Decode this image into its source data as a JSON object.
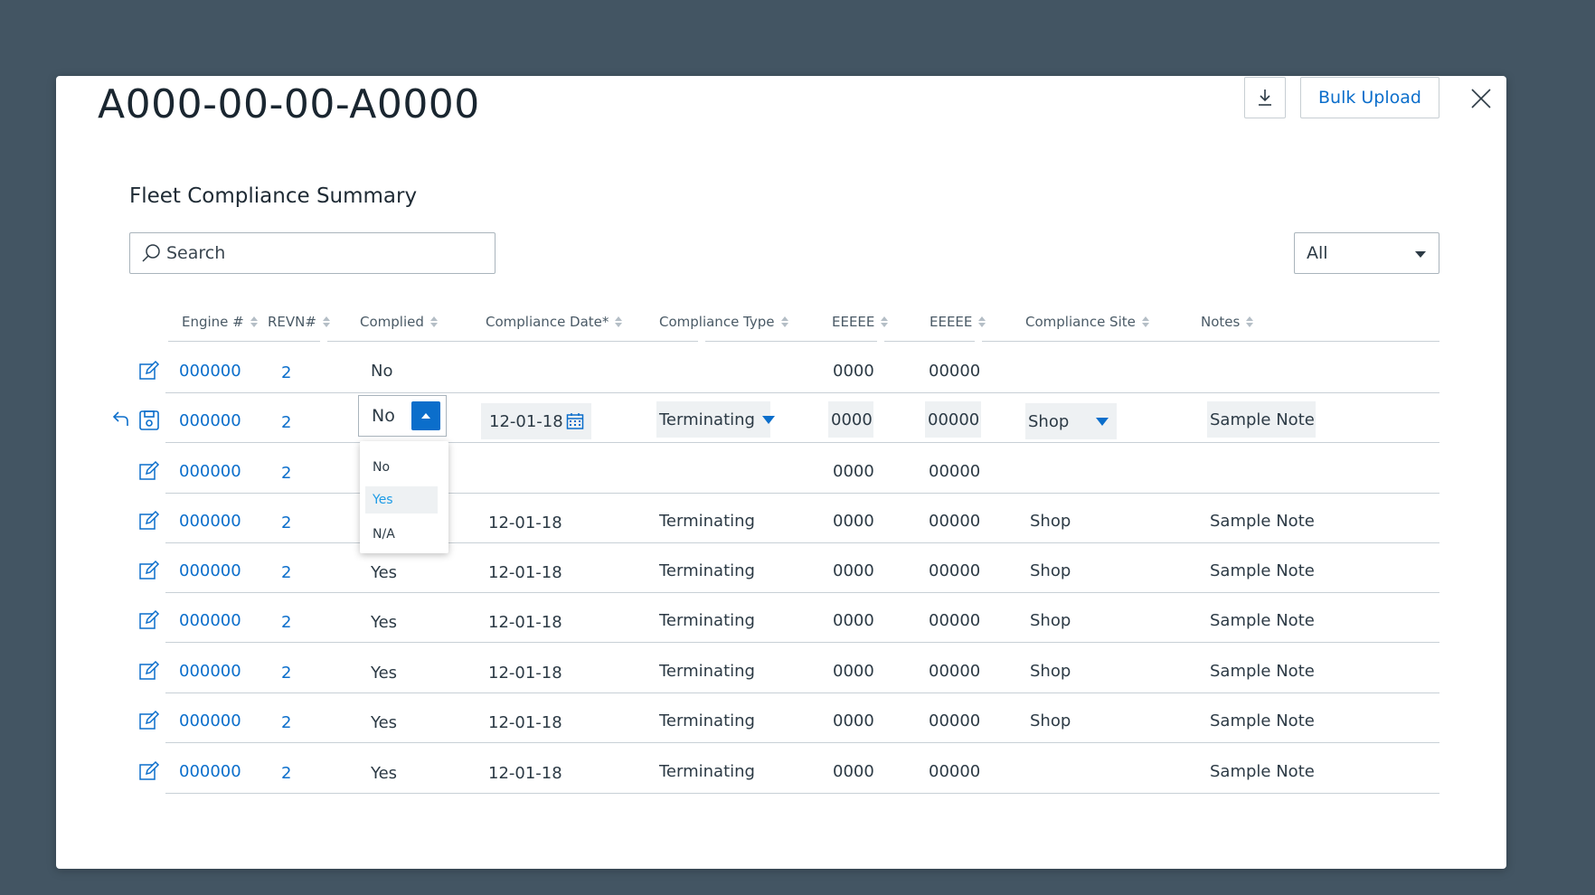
{
  "modal": {
    "title": "A000-00-00-A0000",
    "bulk_upload_label": "Bulk Upload",
    "download_icon": "download-icon",
    "close_icon": "close-icon"
  },
  "section": {
    "title": "Fleet Compliance Summary",
    "search_placeholder": "Search",
    "filter_value": "All"
  },
  "table": {
    "columns": [
      "Engine #",
      "REVN#",
      "Complied",
      "Compliance Date*",
      "Compliance Type",
      "EEEEE",
      "EEEEE",
      "Compliance Site",
      "Notes"
    ],
    "rows": [
      {
        "engine": "000000",
        "revn": "2",
        "complied": "No",
        "date": "",
        "type": "",
        "e1": "0000",
        "e2": "00000",
        "site": "",
        "notes": ""
      },
      {
        "engine": "000000",
        "revn": "2",
        "complied": "No",
        "date": "12-01-18",
        "type": "Terminating",
        "e1": "0000",
        "e2": "00000",
        "site": "Shop",
        "notes": "Sample Note",
        "editing": true
      },
      {
        "engine": "000000",
        "revn": "2",
        "complied": "",
        "date": "",
        "type": "",
        "e1": "0000",
        "e2": "00000",
        "site": "",
        "notes": ""
      },
      {
        "engine": "000000",
        "revn": "2",
        "complied": "",
        "date": "12-01-18",
        "type": "Terminating",
        "e1": "0000",
        "e2": "00000",
        "site": "Shop",
        "notes": "Sample Note"
      },
      {
        "engine": "000000",
        "revn": "2",
        "complied": "Yes",
        "date": "12-01-18",
        "type": "Terminating",
        "e1": "0000",
        "e2": "00000",
        "site": "Shop",
        "notes": "Sample Note"
      },
      {
        "engine": "000000",
        "revn": "2",
        "complied": "Yes",
        "date": "12-01-18",
        "type": "Terminating",
        "e1": "0000",
        "e2": "00000",
        "site": "Shop",
        "notes": "Sample Note"
      },
      {
        "engine": "000000",
        "revn": "2",
        "complied": "Yes",
        "date": "12-01-18",
        "type": "Terminating",
        "e1": "0000",
        "e2": "00000",
        "site": "Shop",
        "notes": "Sample Note"
      },
      {
        "engine": "000000",
        "revn": "2",
        "complied": "Yes",
        "date": "12-01-18",
        "type": "Terminating",
        "e1": "0000",
        "e2": "00000",
        "site": "Shop",
        "notes": "Sample Note"
      },
      {
        "engine": "000000",
        "revn": "2",
        "complied": "Yes",
        "date": "12-01-18",
        "type": "Terminating",
        "e1": "0000",
        "e2": "00000",
        "site": "",
        "notes": "Sample Note"
      }
    ],
    "complied_dropdown": {
      "current": "No",
      "options": [
        "No",
        "Yes",
        "N/A"
      ],
      "highlighted": "Yes"
    }
  },
  "colors": {
    "accent": "#0b6ecb",
    "backdrop": "#435563",
    "row_edit_bg": "#eef1f3"
  }
}
